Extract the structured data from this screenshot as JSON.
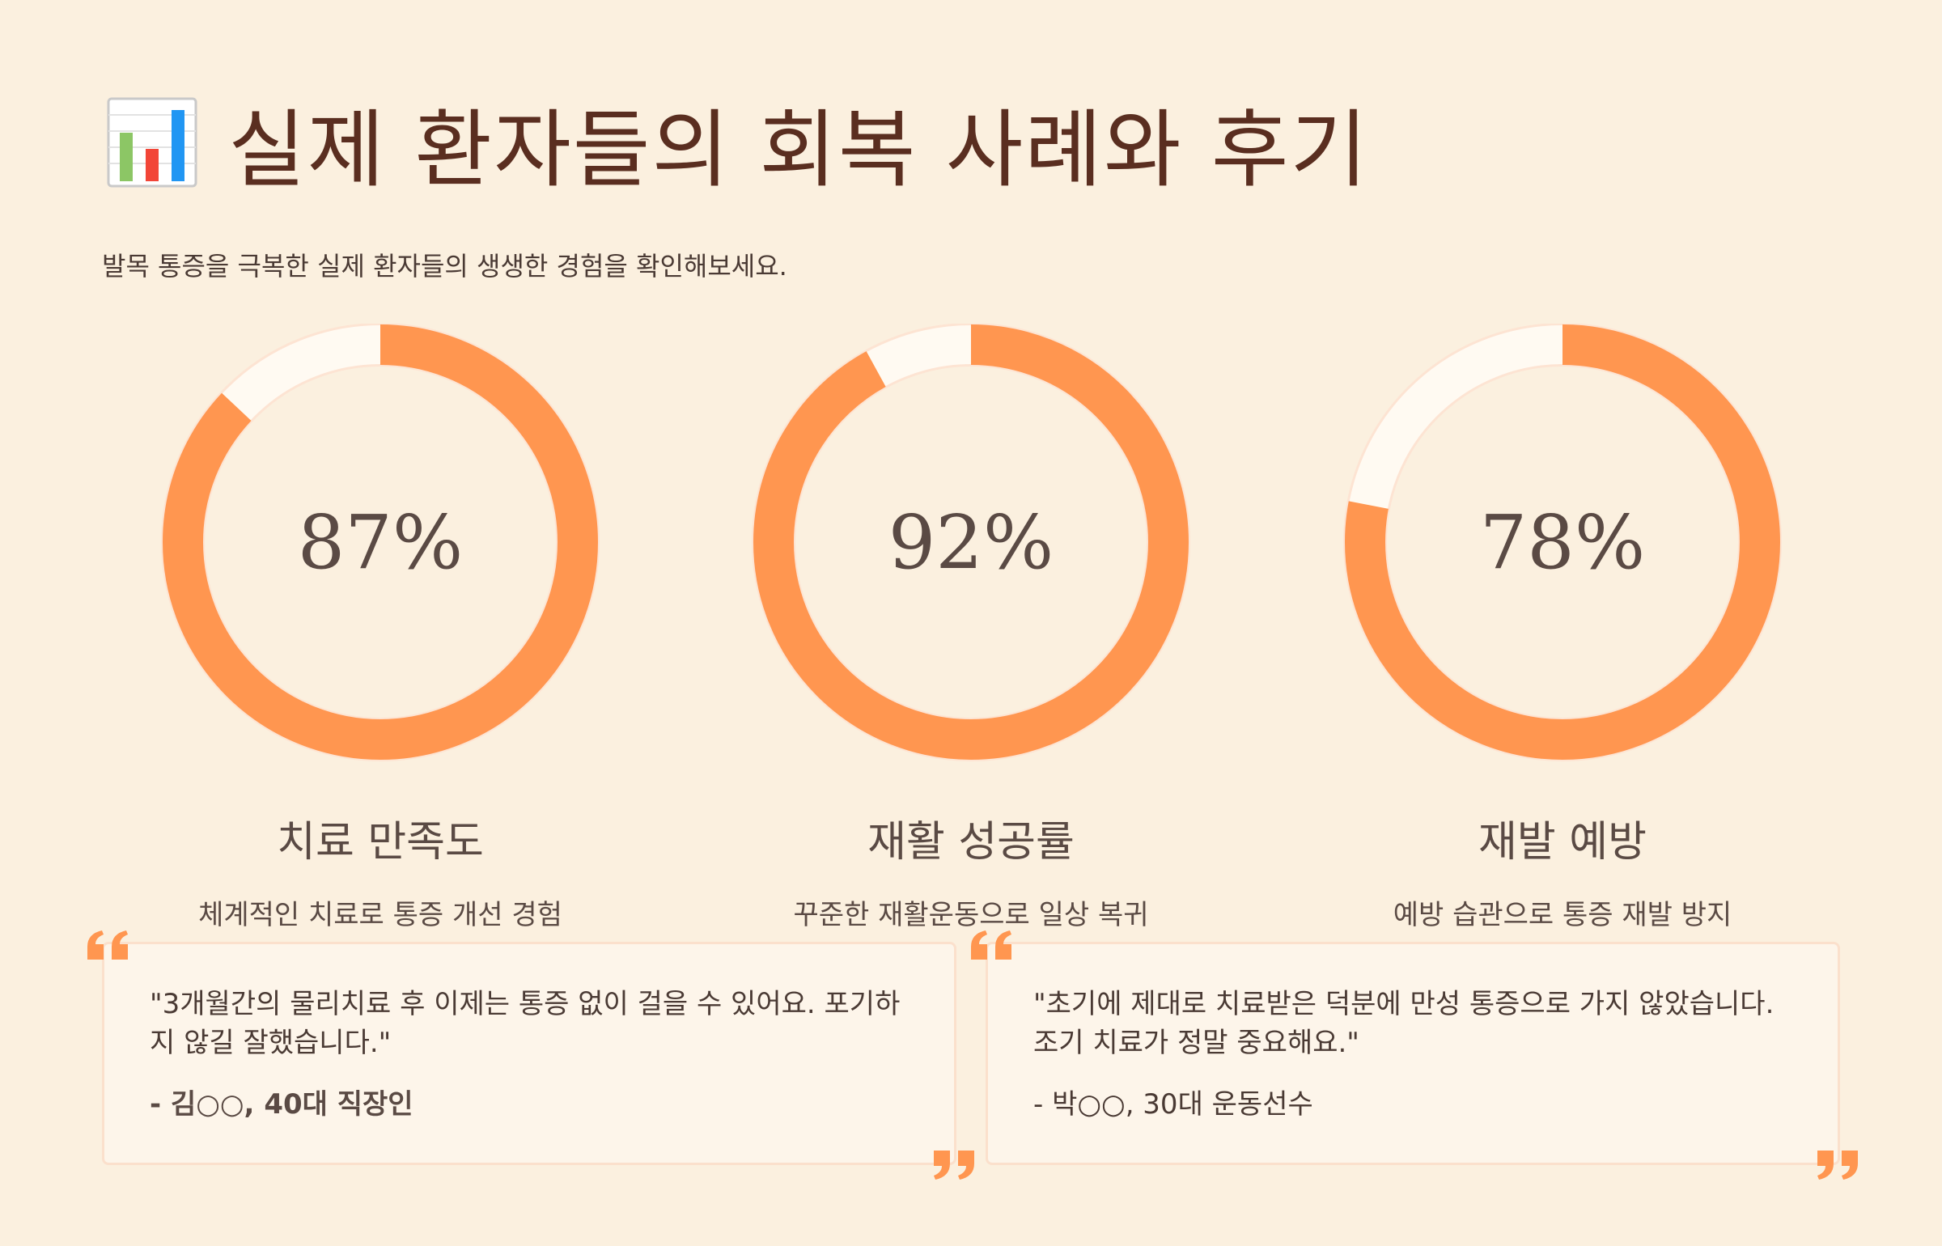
{
  "header": {
    "icon": "bar-chart-icon",
    "title": "실제 환자들의 회복 사례와 후기",
    "subtitle": "발목 통증을 극복한 실제 환자들의 생생한 경험을 확인해보세요."
  },
  "chart_data": {
    "type": "donut",
    "max": 100,
    "unit": "%",
    "items": [
      {
        "value": 87,
        "display": "87%",
        "label": "치료 만족도",
        "description": "체계적인 치료로 통증 개선 경험"
      },
      {
        "value": 92,
        "display": "92%",
        "label": "재활 성공률",
        "description": "꾸준한 재활운동으로 일상 복귀"
      },
      {
        "value": 78,
        "display": "78%",
        "label": "재발 예방",
        "description": "예방 습관으로 통증 재발 방지"
      }
    ]
  },
  "testimonials": [
    {
      "text": "\"3개월간의 물리치료 후 이제는 통증 없이 걸을 수 있어요. 포기하지 않길 잘했습니다.\"",
      "author": "- 김○○, 40대 직장인"
    },
    {
      "text": "\"초기에 제대로 치료받은 덕분에 만성 통증으로 가지 않았습니다. 조기 치료가 정말 중요해요.\"",
      "author": "- 박○○, 30대 운동선수"
    }
  ],
  "colors": {
    "accent": "#ff9650",
    "track": "#fffaf2",
    "background": "#fbf0df",
    "title": "#5a2e20",
    "text": "#4a3a34"
  }
}
